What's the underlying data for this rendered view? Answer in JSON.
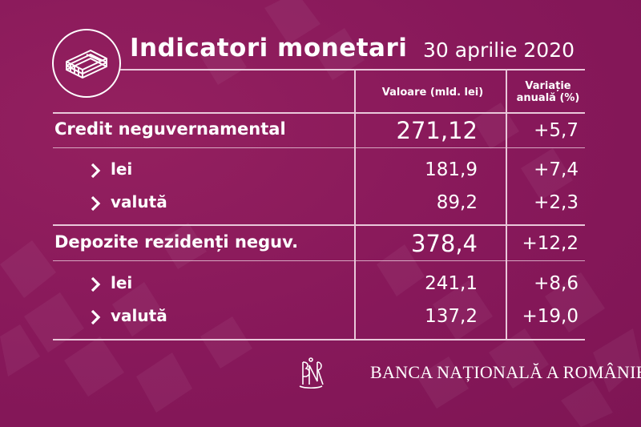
{
  "header": {
    "title": "Indicatori monetari",
    "date": "30 aprilie 2020"
  },
  "columns": {
    "value": "Valoare (mld. lei)",
    "change_line1": "Variație",
    "change_line2": "anuală (%)"
  },
  "rows": [
    {
      "label": "Credit neguvernamental",
      "value": "271,12",
      "change": "+5,7"
    },
    {
      "label": "lei",
      "value": "181,9",
      "change": "+7,4"
    },
    {
      "label": "valută",
      "value": "89,2",
      "change": "+2,3"
    },
    {
      "label": "Depozite rezidenți neguv.",
      "value": "378,4",
      "change": "+12,2"
    },
    {
      "label": "lei",
      "value": "241,1",
      "change": "+8,6"
    },
    {
      "label": "valută",
      "value": "137,2",
      "change": "+19,0"
    }
  ],
  "footer": {
    "bank_name": "BANCA NAȚIONALĂ A ROMÂNIEI"
  },
  "icons": {
    "header": "money-stack-icon",
    "bullet": "chevron-right-icon",
    "logo": "bnr-monogram-icon"
  },
  "colors": {
    "background": "#8a1a5c",
    "text": "#ffffff"
  }
}
